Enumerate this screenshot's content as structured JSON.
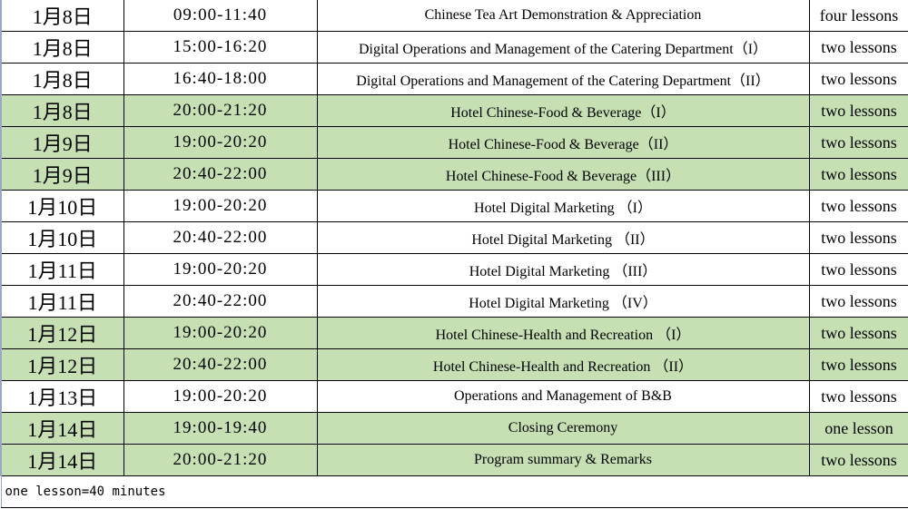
{
  "colors": {
    "highlight_row": "#c6e0b4",
    "grid_line": "#000000"
  },
  "rows": [
    {
      "date": "1月8日",
      "time": "09:00-11:40",
      "course": "Chinese Tea Art Demonstration & Appreciation",
      "lessons": "four lessons",
      "highlighted": false
    },
    {
      "date": "1月8日",
      "time": "15:00-16:20",
      "course": "Digital Operations and Management of the Catering Department（I）",
      "lessons": "two lessons",
      "highlighted": false
    },
    {
      "date": "1月8日",
      "time": "16:40-18:00",
      "course": "Digital Operations and Management of the Catering Department（II）",
      "lessons": "two lessons",
      "highlighted": false
    },
    {
      "date": "1月8日",
      "time": "20:00-21:20",
      "course": "Hotel Chinese-Food & Beverage（I）",
      "lessons": "two lessons",
      "highlighted": true
    },
    {
      "date": "1月9日",
      "time": "19:00-20:20",
      "course": "Hotel Chinese-Food & Beverage（II）",
      "lessons": "two lessons",
      "highlighted": true
    },
    {
      "date": "1月9日",
      "time": "20:40-22:00",
      "course": "Hotel Chinese-Food & Beverage（III）",
      "lessons": "two lessons",
      "highlighted": true
    },
    {
      "date": "1月10日",
      "time": "19:00-20:20",
      "course": "Hotel Digital Marketing （I）",
      "lessons": "two lessons",
      "highlighted": false
    },
    {
      "date": "1月10日",
      "time": "20:40-22:00",
      "course": "Hotel Digital Marketing （II）",
      "lessons": "two lessons",
      "highlighted": false
    },
    {
      "date": "1月11日",
      "time": "19:00-20:20",
      "course": "Hotel Digital Marketing （III）",
      "lessons": "two lessons",
      "highlighted": false
    },
    {
      "date": "1月11日",
      "time": "20:40-22:00",
      "course": "Hotel Digital Marketing （IV）",
      "lessons": "two lessons",
      "highlighted": false
    },
    {
      "date": "1月12日",
      "time": "19:00-20:20",
      "course": "Hotel Chinese-Health and Recreation （I）",
      "lessons": "two lessons",
      "highlighted": true
    },
    {
      "date": "1月12日",
      "time": "20:40-22:00",
      "course": "Hotel Chinese-Health and Recreation （II）",
      "lessons": "two lessons",
      "highlighted": true
    },
    {
      "date": "1月13日",
      "time": "19:00-20:20",
      "course": "Operations and Management of B&B",
      "lessons": "two lessons",
      "highlighted": false
    },
    {
      "date": "1月14日",
      "time": "19:00-19:40",
      "course": "Closing Ceremony",
      "lessons": "one lesson",
      "highlighted": true
    },
    {
      "date": "1月14日",
      "time": "20:00-21:20",
      "course": "Program summary & Remarks",
      "lessons": "two lessons",
      "highlighted": true
    }
  ],
  "footnote": "one lesson=40 minutes"
}
